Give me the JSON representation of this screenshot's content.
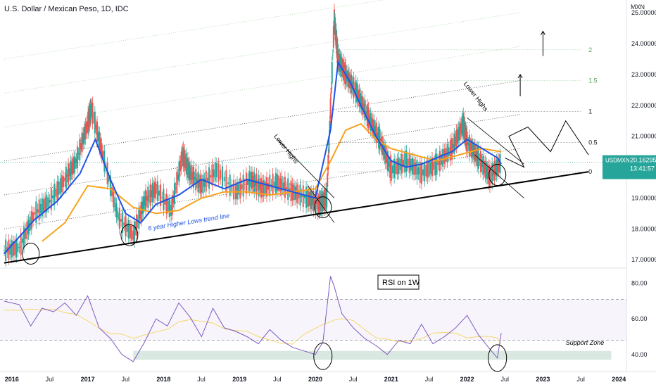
{
  "header": {
    "title": "U.S. Dollar / Mexican Peso, 1D, IDC"
  },
  "price_badge": {
    "symbol": "USDMXN",
    "price": "20.16295",
    "countdown": "13:41:57"
  },
  "annotations": {
    "trendline": "6 year Higher Lows trend line",
    "lower_highs_1": "Lower Highs",
    "lower_highs_2": "Lower Highs",
    "rsi_label": "RSI on 1W",
    "support_zone": "Support Zone",
    "fib_levels": [
      "0",
      "0.5",
      "1",
      "1.5",
      "2"
    ]
  },
  "colors": {
    "price_up": "#26a69a",
    "price_down": "#ef5350",
    "ma_fast": "#1e53e5",
    "ma_slow": "#f7a21b",
    "rsi_line": "#7e57c2",
    "rsi_ma": "#f5d76e",
    "trendline": "#000000",
    "fib_green": "#5aa05a",
    "support_zone": "#cfe2d9"
  },
  "chart_data": [
    {
      "type": "line",
      "title": "U.S. Dollar / Mexican Peso, 1D, IDC",
      "ylabel": "MXN",
      "ylim": [
        16.8,
        25.3
      ],
      "y_ticks": [
        "25.00000",
        "24.00000",
        "23.00000",
        "22.00000",
        "21.00000",
        "20.00000",
        "19.00000",
        "18.00000",
        "17.00000"
      ],
      "x_ticks": [
        "2016",
        "Jul",
        "2017",
        "Jul",
        "2018",
        "Jul",
        "2019",
        "Jul",
        "2020",
        "Jul",
        "2021",
        "Jul",
        "2022",
        "Jul",
        "2023",
        "Jul",
        "2024"
      ],
      "series": [
        {
          "role": "price",
          "x": [
            2015.9,
            2016.1,
            2016.3,
            2016.5,
            2016.7,
            2016.85,
            2017.0,
            2017.05,
            2017.2,
            2017.4,
            2017.6,
            2017.75,
            2017.9,
            2018.1,
            2018.25,
            2018.35,
            2018.5,
            2018.7,
            2018.95,
            2019.15,
            2019.3,
            2019.5,
            2019.7,
            2019.9,
            2020.05,
            2020.15,
            2020.25,
            2020.3,
            2020.4,
            2020.55,
            2020.7,
            2020.85,
            2021.0,
            2021.2,
            2021.4,
            2021.6,
            2021.8,
            2021.95,
            2022.0,
            2022.15,
            2022.3,
            2022.45
          ],
          "values": [
            17.3,
            17.4,
            18.5,
            18.9,
            19.6,
            20.2,
            21.4,
            21.9,
            20.4,
            18.4,
            17.8,
            18.9,
            19.3,
            18.6,
            20.4,
            19.8,
            19.4,
            19.9,
            19.2,
            19.6,
            19.3,
            19.5,
            19.2,
            19.0,
            18.8,
            19.0,
            24.8,
            23.5,
            23.0,
            22.4,
            21.6,
            20.9,
            19.9,
            20.2,
            19.8,
            20.1,
            20.6,
            21.4,
            20.8,
            20.3,
            19.7,
            20.16
          ]
        },
        {
          "role": "fast moving average",
          "x": [
            2015.9,
            2016.3,
            2016.6,
            2016.9,
            2017.1,
            2017.3,
            2017.5,
            2017.7,
            2017.9,
            2018.2,
            2018.5,
            2018.8,
            2019.1,
            2019.4,
            2019.7,
            2020.0,
            2020.2,
            2020.3,
            2020.45,
            2020.6,
            2020.8,
            2021.0,
            2021.2,
            2021.4,
            2021.6,
            2021.8,
            2022.0,
            2022.2,
            2022.4,
            2022.45
          ],
          "values": [
            17.2,
            18.3,
            18.9,
            19.8,
            20.9,
            19.6,
            18.5,
            18.2,
            18.8,
            19.1,
            19.6,
            19.3,
            19.6,
            19.4,
            19.2,
            19.0,
            21.2,
            23.4,
            22.8,
            22.0,
            21.0,
            20.2,
            20.0,
            20.1,
            20.3,
            20.5,
            20.9,
            20.6,
            20.3,
            20.1
          ]
        },
        {
          "role": "slow moving average",
          "x": [
            2016.4,
            2016.7,
            2017.0,
            2017.3,
            2017.6,
            2017.9,
            2018.2,
            2018.5,
            2018.8,
            2019.1,
            2019.4,
            2019.7,
            2020.0,
            2020.2,
            2020.4,
            2020.6,
            2020.8,
            2021.0,
            2021.3,
            2021.6,
            2021.9,
            2022.2,
            2022.45
          ],
          "values": [
            17.6,
            18.2,
            19.4,
            19.3,
            18.7,
            18.5,
            18.6,
            19.0,
            19.2,
            19.2,
            19.1,
            19.2,
            19.3,
            20.2,
            21.2,
            21.4,
            20.9,
            20.6,
            20.4,
            20.2,
            20.4,
            20.6,
            20.5
          ]
        },
        {
          "role": "support trend line",
          "x": [
            2015.9,
            2023.6
          ],
          "values": [
            16.9,
            19.85
          ]
        }
      ],
      "fib_levels": [
        {
          "label": "0",
          "value": 19.85
        },
        {
          "label": "0.5",
          "value": 20.8
        },
        {
          "label": "1",
          "value": 21.8
        },
        {
          "label": "1.5",
          "value": 22.8
        },
        {
          "label": "2",
          "value": 23.8
        }
      ]
    },
    {
      "type": "line",
      "title": "RSI on 1W",
      "ylim": [
        32,
        87
      ],
      "y_ticks": [
        "80.00",
        "60.00",
        "40.00"
      ],
      "x": [
        2015.9,
        2016.1,
        2016.25,
        2016.4,
        2016.55,
        2016.7,
        2016.85,
        2017.0,
        2017.15,
        2017.3,
        2017.45,
        2017.6,
        2017.75,
        2017.9,
        2018.05,
        2018.2,
        2018.35,
        2018.5,
        2018.65,
        2018.8,
        2018.95,
        2019.1,
        2019.25,
        2019.4,
        2019.55,
        2019.7,
        2019.85,
        2020.0,
        2020.1,
        2020.2,
        2020.25,
        2020.35,
        2020.5,
        2020.65,
        2020.8,
        2020.95,
        2021.1,
        2021.25,
        2021.4,
        2021.55,
        2021.7,
        2021.85,
        2022.0,
        2022.15,
        2022.3,
        2022.4,
        2022.45
      ],
      "values": [
        70,
        68,
        56,
        66,
        64,
        69,
        62,
        73,
        55,
        49,
        40,
        36,
        47,
        60,
        56,
        69,
        61,
        50,
        66,
        55,
        53,
        50,
        46,
        54,
        48,
        44,
        42,
        40,
        47,
        84,
        78,
        63,
        55,
        49,
        45,
        40,
        48,
        46,
        57,
        46,
        50,
        55,
        62,
        51,
        43,
        38,
        52
      ],
      "zone": {
        "label": "Support Zone",
        "range": [
          37,
          42
        ]
      },
      "band": [
        48,
        71
      ]
    }
  ]
}
